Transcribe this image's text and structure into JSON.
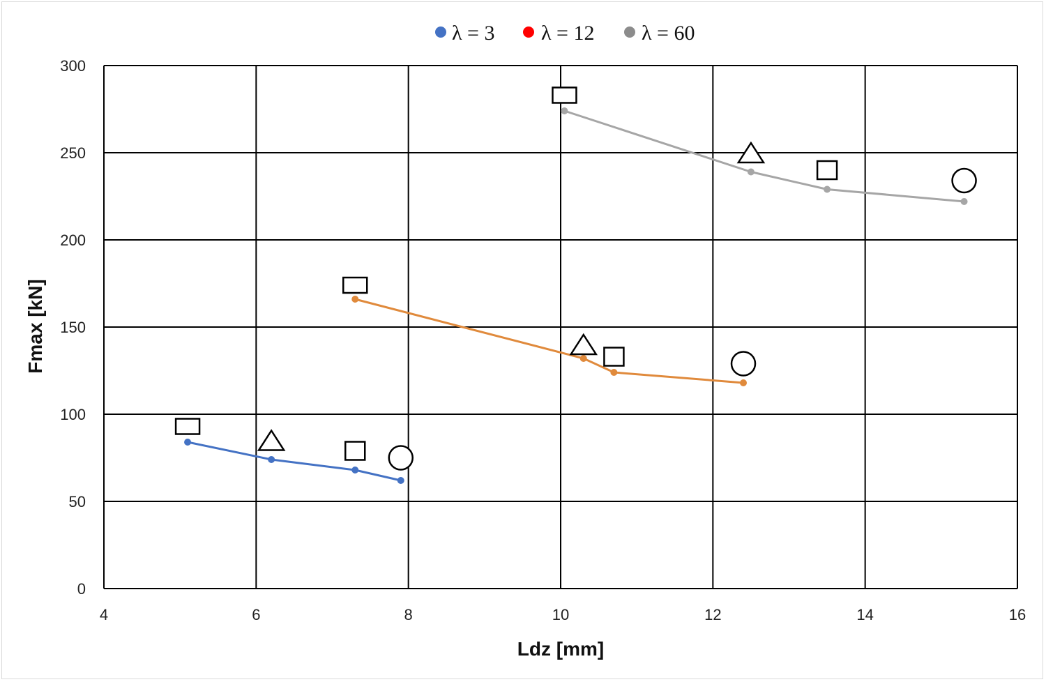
{
  "chart_data": {
    "type": "line",
    "title": "",
    "xlabel": "Ldz [mm]",
    "ylabel": "Fmax [kN]",
    "xlim": [
      4,
      16
    ],
    "ylim": [
      0,
      300
    ],
    "xticks": [
      "4",
      "6",
      "8",
      "10",
      "12",
      "14",
      "16"
    ],
    "yticks": [
      "0",
      "50",
      "100",
      "150",
      "200",
      "250",
      "300"
    ],
    "grid": true,
    "legend_position": "top-center",
    "legend": [
      {
        "label": "λ = 3",
        "color": "#4472c4"
      },
      {
        "label": "λ = 12",
        "color": "#ff0000"
      },
      {
        "label": "λ = 60",
        "color": "#8c8c8c"
      }
    ],
    "series": [
      {
        "color": "#4472c4",
        "x": [
          5.1,
          6.2,
          7.3,
          7.9
        ],
        "y": [
          84,
          74,
          68,
          62
        ]
      },
      {
        "color": "#e08a3c",
        "x": [
          7.3,
          10.3,
          10.7,
          12.4
        ],
        "y": [
          166,
          132,
          124,
          118
        ]
      },
      {
        "color": "#a6a6a6",
        "x": [
          10.05,
          12.5,
          13.5,
          15.3
        ],
        "y": [
          274,
          239,
          229,
          222
        ]
      }
    ],
    "markers": [
      {
        "shape": "rect",
        "x": 5.1,
        "y": 93
      },
      {
        "shape": "triangle",
        "x": 6.2,
        "y": 85
      },
      {
        "shape": "square",
        "x": 7.3,
        "y": 79
      },
      {
        "shape": "circle",
        "x": 7.9,
        "y": 75
      },
      {
        "shape": "rect",
        "x": 7.3,
        "y": 174
      },
      {
        "shape": "triangle",
        "x": 10.3,
        "y": 140
      },
      {
        "shape": "square",
        "x": 10.7,
        "y": 133
      },
      {
        "shape": "circle",
        "x": 12.4,
        "y": 129
      },
      {
        "shape": "rect",
        "x": 10.05,
        "y": 283
      },
      {
        "shape": "triangle",
        "x": 12.5,
        "y": 250
      },
      {
        "shape": "square",
        "x": 13.5,
        "y": 240
      },
      {
        "shape": "circle",
        "x": 15.3,
        "y": 234
      }
    ]
  }
}
